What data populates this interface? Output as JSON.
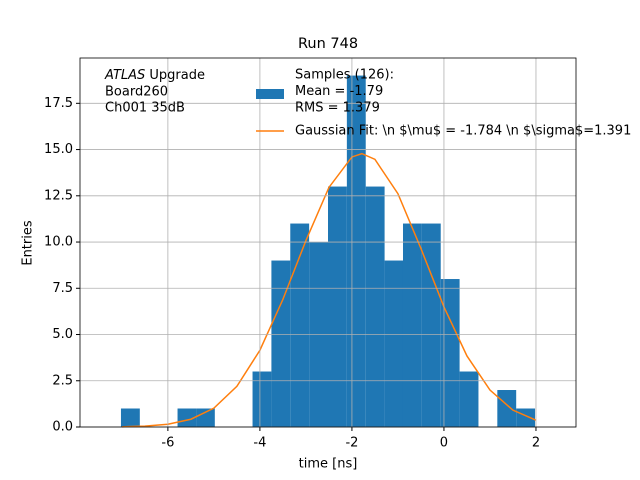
{
  "chart_data": {
    "type": "histogram",
    "title": "Run 748",
    "xlabel": "time [ns]",
    "ylabel": "Entries",
    "annotation": {
      "italic": "ATLAS",
      "rest": " Upgrade",
      "lines": [
        " Board260",
        " Ch001 35dB"
      ]
    },
    "bins": [
      -7.02,
      -6.61,
      -6.2,
      -5.79,
      -5.38,
      -4.98,
      -4.57,
      -4.16,
      -3.75,
      -3.34,
      -2.93,
      -2.52,
      -2.11,
      -1.7,
      -1.29,
      -0.89,
      -0.48,
      -0.07,
      0.34,
      0.75,
      1.16,
      1.57,
      1.98
    ],
    "series": [
      {
        "name": [
          "Samples (126):",
          " Mean = -1.79",
          " RMS = 1.379"
        ],
        "color": "#1f77b4",
        "values": [
          1,
          0,
          0,
          1,
          1,
          0,
          0,
          3,
          9,
          11,
          10,
          13,
          19,
          13,
          9,
          11,
          11,
          8,
          3,
          0,
          2,
          1
        ]
      },
      {
        "name": "Gaussian Fit: \\n $\\mu$ = -1.784 \\n $\\sigma$=1.391",
        "color": "#ff7f0e",
        "type": "line",
        "x": [
          -7,
          -6.5,
          -6,
          -5.5,
          -5,
          -4.5,
          -4,
          -3.5,
          -3,
          -2.5,
          -2,
          -1.784,
          -1.5,
          -1,
          -0.5,
          0,
          0.5,
          1,
          1.5,
          2
        ],
        "values": [
          0.01,
          0.05,
          0.15,
          0.42,
          1.02,
          2.2,
          4.15,
          6.9,
          10.08,
          12.95,
          14.6,
          14.78,
          14.47,
          12.61,
          9.65,
          6.49,
          3.84,
          2.0,
          0.91,
          0.37
        ]
      }
    ],
    "xlim": [
      -7.91,
      2.87
    ],
    "ylim": [
      0,
      19.95
    ],
    "xticks": [
      -6,
      -4,
      -2,
      0,
      2
    ],
    "yticks": [
      {
        "value": 0,
        "label": "0.0"
      },
      {
        "value": 2.5,
        "label": "2.5"
      },
      {
        "value": 5,
        "label": "5.0"
      },
      {
        "value": 7.5,
        "label": "7.5"
      },
      {
        "value": 10,
        "label": "10.0"
      },
      {
        "value": 12.5,
        "label": "12.5"
      },
      {
        "value": 15,
        "label": "15.0"
      },
      {
        "value": 17.5,
        "label": "17.5"
      }
    ],
    "grid": true
  }
}
